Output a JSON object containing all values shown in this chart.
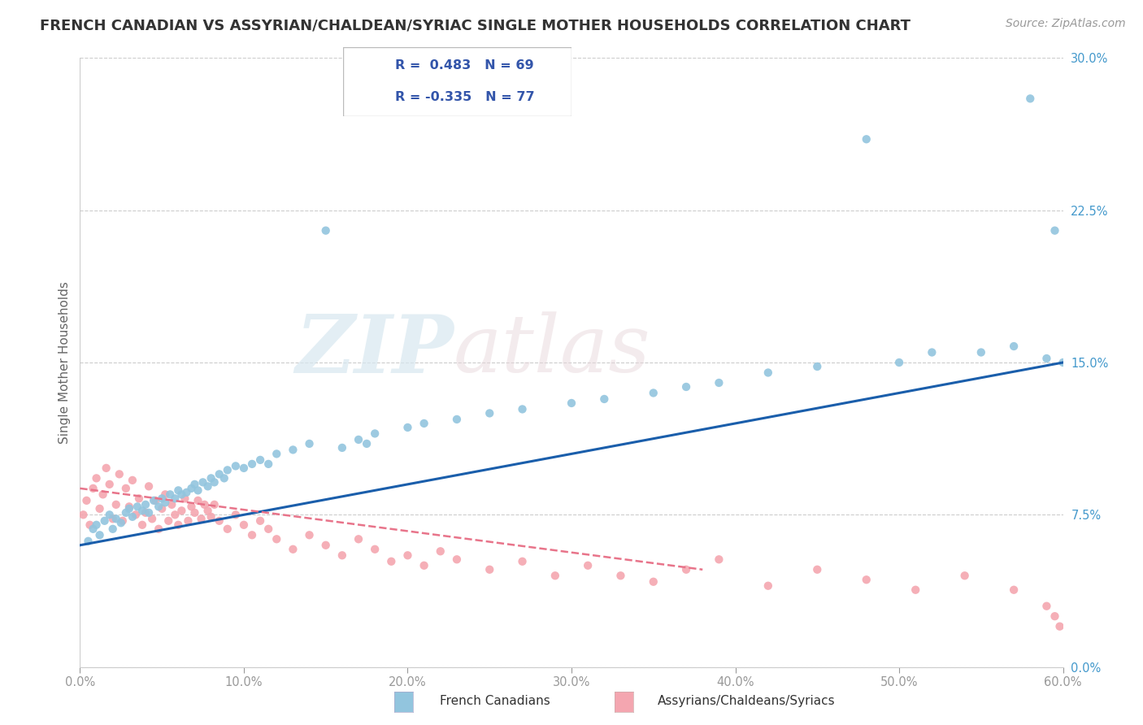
{
  "title": "FRENCH CANADIAN VS ASSYRIAN/CHALDEAN/SYRIAC SINGLE MOTHER HOUSEHOLDS CORRELATION CHART",
  "source_text": "Source: ZipAtlas.com",
  "ylabel": "Single Mother Households",
  "xlim": [
    0.0,
    0.6
  ],
  "ylim": [
    0.0,
    0.3
  ],
  "xticks": [
    0.0,
    0.1,
    0.2,
    0.3,
    0.4,
    0.5,
    0.6
  ],
  "xtick_labels": [
    "0.0%",
    "10.0%",
    "20.0%",
    "30.0%",
    "40.0%",
    "50.0%",
    "60.0%"
  ],
  "yticks": [
    0.0,
    0.075,
    0.15,
    0.225,
    0.3
  ],
  "ytick_labels": [
    "0.0%",
    "7.5%",
    "15.0%",
    "22.5%",
    "30.0%"
  ],
  "blue_R": 0.483,
  "blue_N": 69,
  "pink_R": -0.335,
  "pink_N": 77,
  "blue_color": "#92C5DE",
  "pink_color": "#F4A6B0",
  "blue_line_color": "#1A5EAB",
  "pink_line_color": "#E8748A",
  "legend_label_blue": "French Canadians",
  "legend_label_pink": "Assyrians/Chaldeans/Syriacs",
  "watermark_zip": "ZIP",
  "watermark_atlas": "atlas",
  "blue_scatter_x": [
    0.005,
    0.008,
    0.01,
    0.012,
    0.015,
    0.018,
    0.02,
    0.022,
    0.025,
    0.028,
    0.03,
    0.032,
    0.035,
    0.038,
    0.04,
    0.042,
    0.045,
    0.048,
    0.05,
    0.052,
    0.055,
    0.058,
    0.06,
    0.062,
    0.065,
    0.068,
    0.07,
    0.072,
    0.075,
    0.078,
    0.08,
    0.082,
    0.085,
    0.088,
    0.09,
    0.095,
    0.1,
    0.105,
    0.11,
    0.115,
    0.12,
    0.13,
    0.14,
    0.15,
    0.16,
    0.17,
    0.175,
    0.18,
    0.2,
    0.21,
    0.23,
    0.25,
    0.27,
    0.3,
    0.32,
    0.35,
    0.37,
    0.39,
    0.42,
    0.45,
    0.48,
    0.5,
    0.52,
    0.55,
    0.57,
    0.58,
    0.59,
    0.595,
    0.6
  ],
  "blue_scatter_y": [
    0.062,
    0.068,
    0.07,
    0.065,
    0.072,
    0.075,
    0.068,
    0.073,
    0.071,
    0.076,
    0.078,
    0.074,
    0.079,
    0.077,
    0.08,
    0.076,
    0.082,
    0.079,
    0.083,
    0.081,
    0.085,
    0.083,
    0.087,
    0.085,
    0.086,
    0.088,
    0.09,
    0.087,
    0.091,
    0.089,
    0.093,
    0.091,
    0.095,
    0.093,
    0.097,
    0.099,
    0.098,
    0.1,
    0.102,
    0.1,
    0.105,
    0.107,
    0.11,
    0.215,
    0.108,
    0.112,
    0.11,
    0.115,
    0.118,
    0.12,
    0.122,
    0.125,
    0.127,
    0.13,
    0.132,
    0.135,
    0.138,
    0.14,
    0.145,
    0.148,
    0.26,
    0.15,
    0.155,
    0.155,
    0.158,
    0.28,
    0.152,
    0.215,
    0.15
  ],
  "pink_scatter_x": [
    0.002,
    0.004,
    0.006,
    0.008,
    0.01,
    0.012,
    0.014,
    0.016,
    0.018,
    0.02,
    0.022,
    0.024,
    0.026,
    0.028,
    0.03,
    0.032,
    0.034,
    0.036,
    0.038,
    0.04,
    0.042,
    0.044,
    0.046,
    0.048,
    0.05,
    0.052,
    0.054,
    0.056,
    0.058,
    0.06,
    0.062,
    0.064,
    0.066,
    0.068,
    0.07,
    0.072,
    0.074,
    0.076,
    0.078,
    0.08,
    0.082,
    0.085,
    0.09,
    0.095,
    0.1,
    0.105,
    0.11,
    0.115,
    0.12,
    0.13,
    0.14,
    0.15,
    0.16,
    0.17,
    0.18,
    0.19,
    0.2,
    0.21,
    0.22,
    0.23,
    0.25,
    0.27,
    0.29,
    0.31,
    0.33,
    0.35,
    0.37,
    0.39,
    0.42,
    0.45,
    0.48,
    0.51,
    0.54,
    0.57,
    0.59,
    0.595,
    0.598
  ],
  "pink_scatter_y": [
    0.075,
    0.082,
    0.07,
    0.088,
    0.093,
    0.078,
    0.085,
    0.098,
    0.09,
    0.073,
    0.08,
    0.095,
    0.072,
    0.088,
    0.079,
    0.092,
    0.075,
    0.083,
    0.07,
    0.076,
    0.089,
    0.073,
    0.082,
    0.068,
    0.078,
    0.085,
    0.072,
    0.08,
    0.075,
    0.07,
    0.077,
    0.083,
    0.072,
    0.079,
    0.076,
    0.082,
    0.073,
    0.08,
    0.077,
    0.074,
    0.08,
    0.072,
    0.068,
    0.075,
    0.07,
    0.065,
    0.072,
    0.068,
    0.063,
    0.058,
    0.065,
    0.06,
    0.055,
    0.063,
    0.058,
    0.052,
    0.055,
    0.05,
    0.057,
    0.053,
    0.048,
    0.052,
    0.045,
    0.05,
    0.045,
    0.042,
    0.048,
    0.053,
    0.04,
    0.048,
    0.043,
    0.038,
    0.045,
    0.038,
    0.03,
    0.025,
    0.02
  ],
  "blue_trend_x": [
    0.0,
    0.6
  ],
  "blue_trend_y": [
    0.06,
    0.15
  ],
  "pink_trend_x": [
    0.0,
    0.38
  ],
  "pink_trend_y": [
    0.088,
    0.048
  ],
  "background_color": "#FFFFFF",
  "grid_color": "#CCCCCC",
  "title_color": "#333333",
  "title_fontsize": 13,
  "axis_fontsize": 11,
  "tick_fontsize": 10.5,
  "source_fontsize": 10,
  "source_color": "#999999",
  "ytick_color": "#4499CC",
  "xtick_color": "#999999"
}
